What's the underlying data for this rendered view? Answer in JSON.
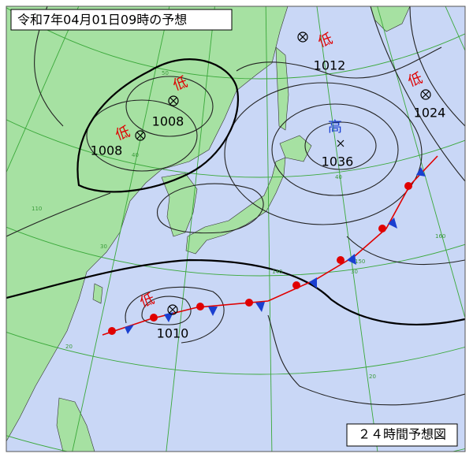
{
  "header": {
    "title": "令和7年04月01日09時の予想"
  },
  "footer": {
    "label": "２４時間予想図"
  },
  "systems": [
    {
      "kind": "低",
      "pressure": "1008"
    },
    {
      "kind": "低",
      "pressure": "1012"
    },
    {
      "kind": "低",
      "pressure": "1024"
    },
    {
      "kind": "高",
      "pressure": "1036"
    },
    {
      "kind": "低",
      "pressure": "1010"
    },
    {
      "kind": "低"
    }
  ],
  "isobar_labels": [
    "1008"
  ],
  "grid_labels": [
    "50",
    "40",
    "40",
    "30",
    "30",
    "20",
    "20",
    "110",
    "140",
    "150",
    "160"
  ]
}
